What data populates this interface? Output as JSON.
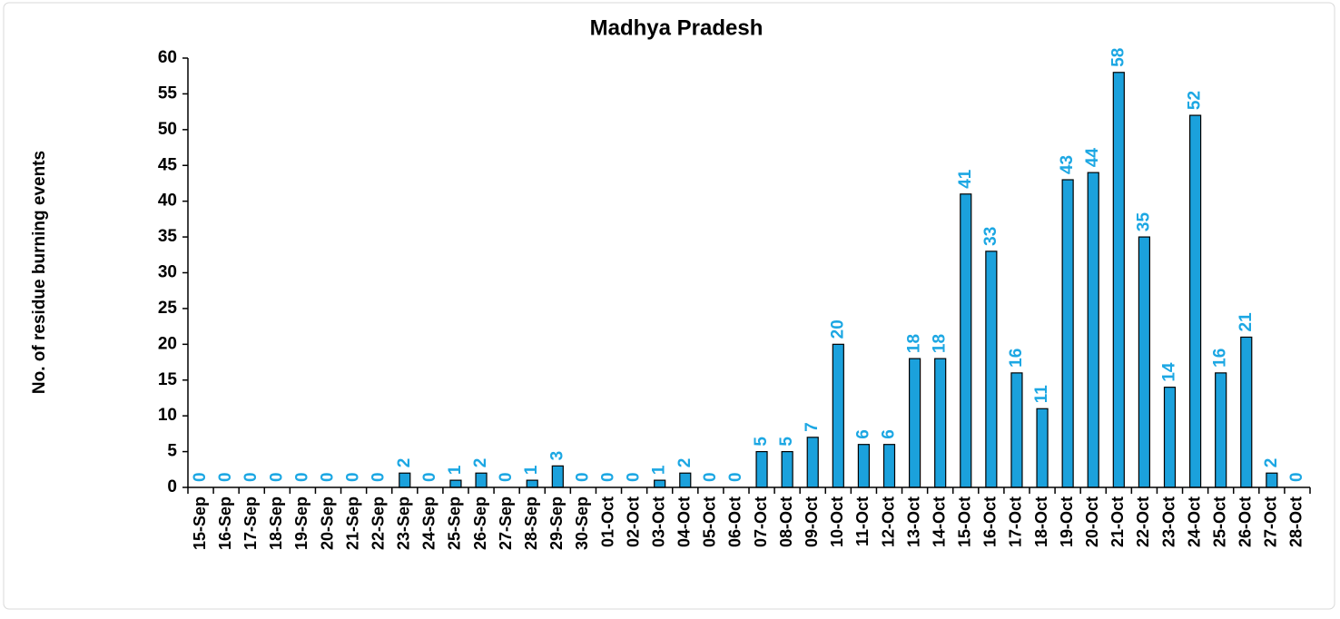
{
  "chart_data": {
    "type": "bar",
    "title": "Madhya Pradesh",
    "y_label": "No. of residue burning events",
    "categories": [
      "15-Sep",
      "16-Sep",
      "17-Sep",
      "18-Sep",
      "19-Sep",
      "20-Sep",
      "21-Sep",
      "22-Sep",
      "23-Sep",
      "24-Sep",
      "25-Sep",
      "26-Sep",
      "27-Sep",
      "28-Sep",
      "29-Sep",
      "30-Sep",
      "01-Oct",
      "02-Oct",
      "03-Oct",
      "04-Oct",
      "05-Oct",
      "06-Oct",
      "07-Oct",
      "08-Oct",
      "09-Oct",
      "10-Oct",
      "11-Oct",
      "12-Oct",
      "13-Oct",
      "14-Oct",
      "15-Oct",
      "16-Oct",
      "17-Oct",
      "18-Oct",
      "19-Oct",
      "20-Oct",
      "21-Oct",
      "22-Oct",
      "23-Oct",
      "24-Oct",
      "25-Oct",
      "26-Oct",
      "27-Oct",
      "28-Oct"
    ],
    "values": [
      0,
      0,
      0,
      0,
      0,
      0,
      0,
      0,
      2,
      0,
      1,
      2,
      0,
      1,
      3,
      0,
      0,
      0,
      1,
      2,
      0,
      0,
      5,
      5,
      7,
      20,
      6,
      6,
      18,
      18,
      41,
      33,
      16,
      11,
      43,
      44,
      58,
      35,
      14,
      52,
      16,
      21,
      2,
      0
    ],
    "color": "#1ba1dc",
    "label_color": "#1ca7e3",
    "ylim": [
      0,
      60
    ],
    "yticks": [
      0,
      5,
      10,
      15,
      20,
      25,
      30,
      35,
      40,
      45,
      50,
      55,
      60
    ]
  }
}
